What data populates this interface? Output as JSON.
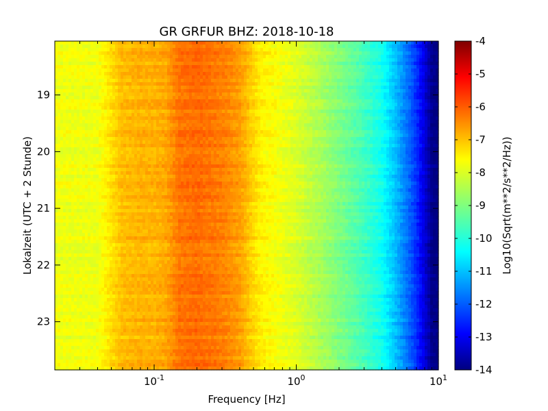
{
  "chart_data": {
    "type": "heatmap",
    "title": "GR GRFUR BHZ: 2018-10-18",
    "xlabel": "Frequency [Hz]",
    "ylabel": "Lokalzeit (UTC + 2 Stunde)",
    "colorbar_label": "Log10(Sqrt(m**2/s**2/Hz))",
    "x_scale": "log",
    "xlim": [
      0.02,
      10
    ],
    "ylim": [
      18.05,
      23.85
    ],
    "y_inverted": true,
    "x_ticks": [
      {
        "value": 0.1,
        "base": "10",
        "exp": "-1"
      },
      {
        "value": 1,
        "base": "10",
        "exp": "0"
      },
      {
        "value": 10,
        "base": "10",
        "exp": "1"
      }
    ],
    "y_ticks": [
      {
        "value": 19,
        "label": "19"
      },
      {
        "value": 20,
        "label": "20"
      },
      {
        "value": 21,
        "label": "21"
      },
      {
        "value": 22,
        "label": "22"
      },
      {
        "value": 23,
        "label": "23"
      }
    ],
    "colorbar_range": [
      -14,
      -4
    ],
    "colorbar_ticks": [
      "-4",
      "-5",
      "-6",
      "-7",
      "-8",
      "-9",
      "-10",
      "-11",
      "-12",
      "-13",
      "-14"
    ],
    "colormap": "jet",
    "spectrum_profile": {
      "frequency_hz": [
        0.02,
        0.04,
        0.06,
        0.08,
        0.1,
        0.12,
        0.15,
        0.2,
        0.3,
        0.4,
        0.55,
        0.7,
        1.0,
        1.5,
        2.0,
        3.0,
        4.0,
        5.0,
        6.0,
        7.0,
        8.0,
        9.0,
        10.0
      ],
      "log10_amplitude": [
        -7.9,
        -7.9,
        -7.1,
        -7.0,
        -7.0,
        -6.9,
        -6.4,
        -6.3,
        -6.5,
        -6.8,
        -7.6,
        -7.8,
        -8.1,
        -8.6,
        -9.0,
        -9.6,
        -10.1,
        -10.9,
        -11.6,
        -12.3,
        -13.1,
        -13.9,
        -14.0
      ]
    }
  }
}
